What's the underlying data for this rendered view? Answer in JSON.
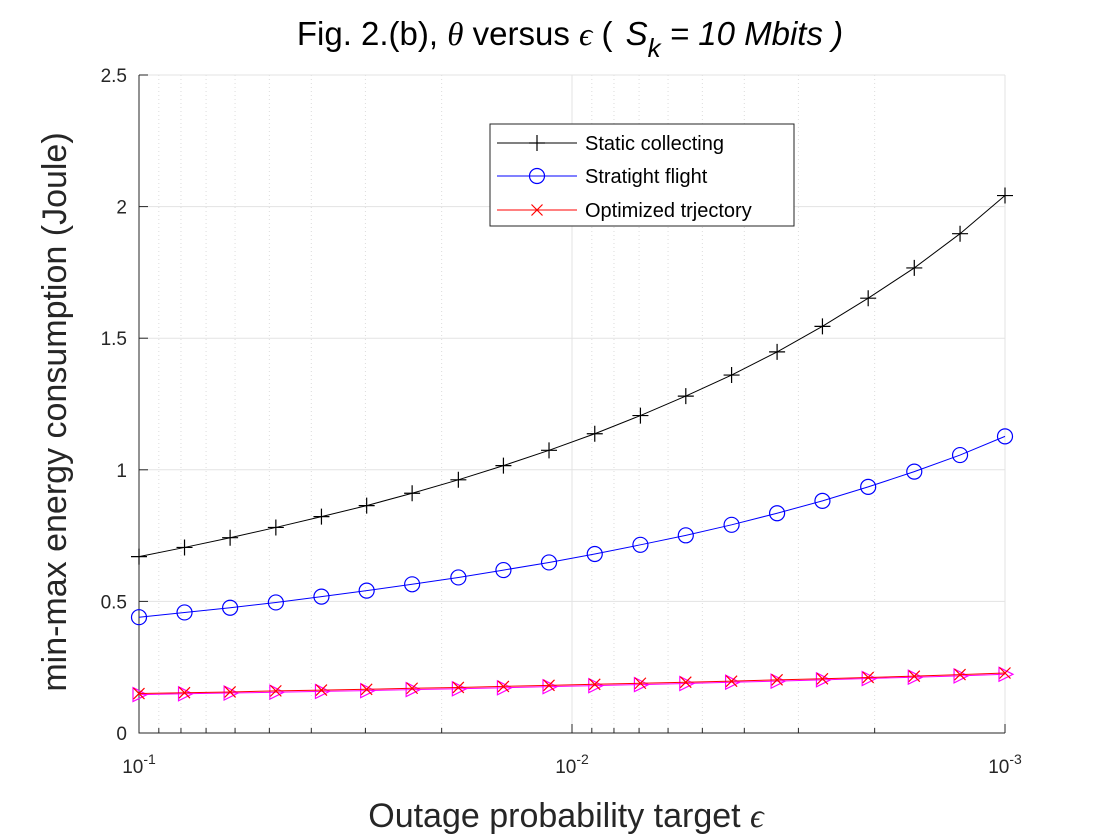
{
  "chart_data": {
    "type": "line",
    "title": {
      "prefix": "Fig. 2.(b), ",
      "theta": "θ",
      "middle": " versus ",
      "epsilon": "ϵ",
      "open_paren": " ( ",
      "s": "S",
      "sub_k": "k",
      "rest": " = 10 Mbits )"
    },
    "xlabel": {
      "text": "Outage probability target ",
      "symbol": "ϵ"
    },
    "ylabel": "min-max energy consumption (Joule)",
    "x_scale": "log",
    "x_reversed": true,
    "xlim": [
      0.1,
      0.001
    ],
    "ylim": [
      0,
      2.5
    ],
    "grid": true,
    "x_ticks": [
      {
        "value": 0.1,
        "base": "10",
        "exp": "-1"
      },
      {
        "value": 0.01,
        "base": "10",
        "exp": "-2"
      },
      {
        "value": 0.001,
        "base": "10",
        "exp": "-3"
      }
    ],
    "y_ticks": [
      {
        "value": 0,
        "label": "0"
      },
      {
        "value": 0.5,
        "label": "0.5"
      },
      {
        "value": 1,
        "label": "1"
      },
      {
        "value": 1.5,
        "label": "1.5"
      },
      {
        "value": 2,
        "label": "2"
      },
      {
        "value": 2.5,
        "label": "2.5"
      }
    ],
    "x": [
      0.1,
      0.0785,
      0.0616,
      0.0483,
      0.0379,
      0.0298,
      0.0234,
      0.0183,
      0.0144,
      0.0113,
      0.00886,
      0.00695,
      0.00546,
      0.00428,
      0.00336,
      0.00264,
      0.00207,
      0.00162,
      0.00127,
      0.001
    ],
    "series": [
      {
        "name": "Static collecting",
        "color": "#000000",
        "marker": "plus",
        "values": [
          0.67,
          0.705,
          0.742,
          0.781,
          0.822,
          0.864,
          0.911,
          0.962,
          1.016,
          1.074,
          1.137,
          1.206,
          1.28,
          1.36,
          1.448,
          1.545,
          1.652,
          1.767,
          1.897,
          2.042
        ]
      },
      {
        "name": "Stratight flight",
        "color": "#0000ff",
        "marker": "circle",
        "values": [
          0.44,
          0.458,
          0.476,
          0.496,
          0.518,
          0.541,
          0.565,
          0.591,
          0.619,
          0.648,
          0.68,
          0.715,
          0.751,
          0.791,
          0.835,
          0.882,
          0.935,
          0.993,
          1.056,
          1.127
        ]
      },
      {
        "name": "Optimized trjectory",
        "color": "#ff0000",
        "marker": "x",
        "values": [
          0.15,
          0.153,
          0.156,
          0.16,
          0.163,
          0.166,
          0.17,
          0.173,
          0.177,
          0.181,
          0.185,
          0.189,
          0.193,
          0.197,
          0.202,
          0.206,
          0.211,
          0.216,
          0.222,
          0.228
        ]
      },
      {
        "name": "",
        "color": "#ff00ff",
        "marker": "triangle-right",
        "in_legend": false,
        "values": [
          0.146,
          0.149,
          0.152,
          0.155,
          0.158,
          0.161,
          0.165,
          0.168,
          0.172,
          0.176,
          0.18,
          0.184,
          0.188,
          0.193,
          0.197,
          0.202,
          0.207,
          0.212,
          0.217,
          0.223
        ]
      }
    ],
    "legend_position": "top-right"
  }
}
